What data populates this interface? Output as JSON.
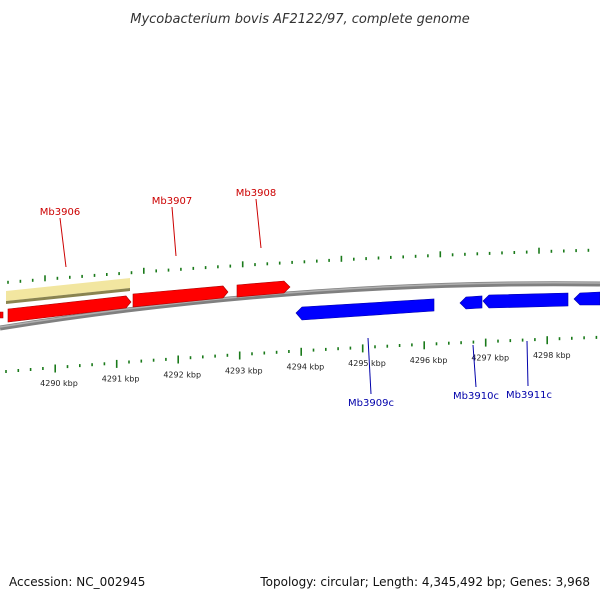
{
  "title": "Mycobacterium bovis AF2122/97, complete genome",
  "footer": {
    "accession": "Accession: NC_002945",
    "summary": "Topology: circular; Length: 4,345,492 bp; Genes: 3,968"
  },
  "colors": {
    "forward_gene": "#ff0000",
    "reverse_gene": "#0000ff",
    "highlight_region": "#f2e6a0",
    "backbone": "#808080",
    "tick": "#1a7a1a",
    "forward_label": "#cc0000",
    "reverse_label": "#0000aa"
  },
  "axis": {
    "unit": "kbp",
    "tick_labels": [
      "4290 kbp",
      "4291 kbp",
      "4292 kbp",
      "4293 kbp",
      "4294 kbp",
      "4295 kbp",
      "4296 kbp",
      "4297 kbp",
      "4298 kbp"
    ]
  },
  "genes": [
    {
      "name": "Mb3906",
      "strand": "+"
    },
    {
      "name": "Mb3907",
      "strand": "+"
    },
    {
      "name": "Mb3908",
      "strand": "+"
    },
    {
      "name": "Mb3909c",
      "strand": "-"
    },
    {
      "name": "Mb3910c",
      "strand": "-"
    },
    {
      "name": "Mb3911c",
      "strand": "-"
    }
  ]
}
